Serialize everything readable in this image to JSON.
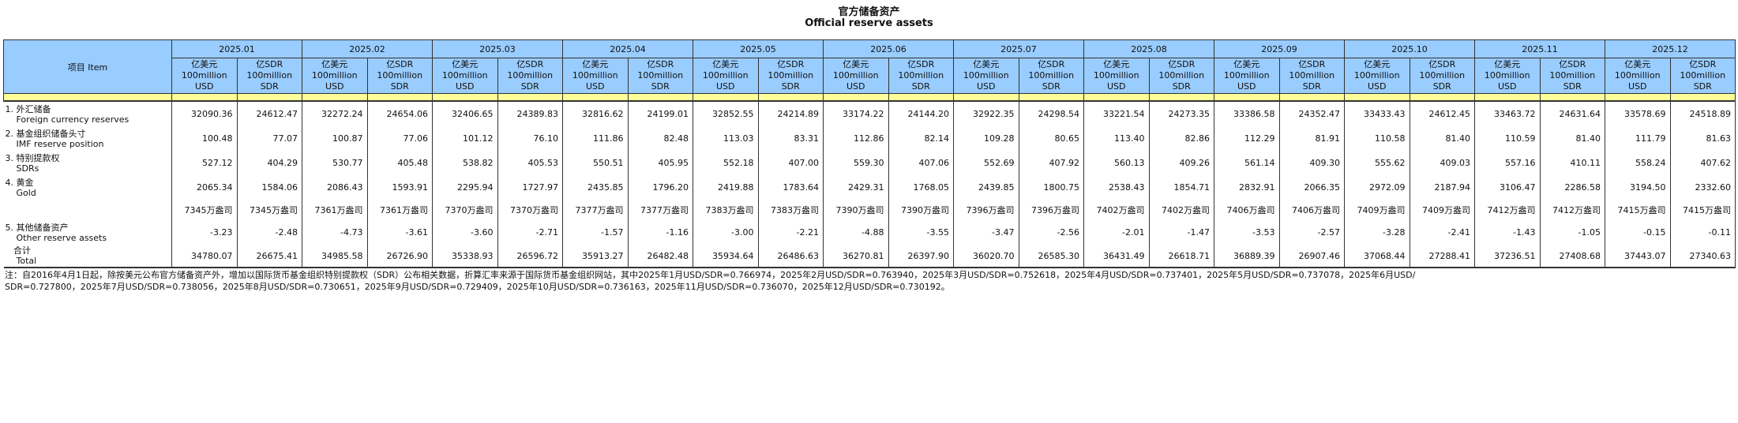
{
  "title_cn": "官方储备资产",
  "title_en": "Official reserve assets",
  "item_header": "项目  Item",
  "months": [
    "2025.01",
    "2025.02",
    "2025.03",
    "2025.04",
    "2025.05",
    "2025.06",
    "2025.07",
    "2025.08",
    "2025.09",
    "2025.10",
    "2025.11",
    "2025.12"
  ],
  "units": {
    "usd": [
      "亿美元",
      "100million",
      "USD"
    ],
    "sdr": [
      "亿SDR",
      "100million",
      "SDR"
    ]
  },
  "rows": [
    {
      "cn": "1. 外汇储备",
      "en": "Foreign currency reserves",
      "values": [
        "32090.36",
        "24612.47",
        "32272.24",
        "24654.06",
        "32406.65",
        "24389.83",
        "32816.62",
        "24199.01",
        "32852.55",
        "24214.89",
        "33174.22",
        "24144.20",
        "32922.35",
        "24298.54",
        "33221.54",
        "24273.35",
        "33386.58",
        "24352.47",
        "33433.43",
        "24612.45",
        "33463.72",
        "24631.64",
        "33578.69",
        "24518.89"
      ]
    },
    {
      "cn": "2. 基金组织储备头寸",
      "en": "IMF reserve position",
      "values": [
        "100.48",
        "77.07",
        "100.87",
        "77.06",
        "101.12",
        "76.10",
        "111.86",
        "82.48",
        "113.03",
        "83.31",
        "112.86",
        "82.14",
        "109.28",
        "80.65",
        "113.40",
        "82.86",
        "112.29",
        "81.91",
        "110.58",
        "81.40",
        "110.59",
        "81.40",
        "111.79",
        "81.63"
      ]
    },
    {
      "cn": "3. 特别提款权",
      "en": "SDRs",
      "values": [
        "527.12",
        "404.29",
        "530.77",
        "405.48",
        "538.82",
        "405.53",
        "550.51",
        "405.95",
        "552.18",
        "407.00",
        "559.30",
        "407.06",
        "552.69",
        "407.92",
        "560.13",
        "409.26",
        "561.14",
        "409.30",
        "555.62",
        "409.03",
        "557.16",
        "410.11",
        "558.24",
        "407.62"
      ]
    },
    {
      "cn": "4. 黄金",
      "en": "Gold",
      "values": [
        "2065.34",
        "1584.06",
        "2086.43",
        "1593.91",
        "2295.94",
        "1727.97",
        "2435.85",
        "1796.20",
        "2419.88",
        "1783.64",
        "2429.31",
        "1768.05",
        "2439.85",
        "1800.75",
        "2538.43",
        "1854.71",
        "2832.91",
        "2066.35",
        "2972.09",
        "2187.94",
        "3106.47",
        "2286.58",
        "3194.50",
        "2332.60"
      ]
    },
    {
      "cn": "",
      "en": "",
      "oz": true,
      "values": [
        "7345万盎司",
        "7345万盎司",
        "7361万盎司",
        "7361万盎司",
        "7370万盎司",
        "7370万盎司",
        "7377万盎司",
        "7377万盎司",
        "7383万盎司",
        "7383万盎司",
        "7390万盎司",
        "7390万盎司",
        "7396万盎司",
        "7396万盎司",
        "7402万盎司",
        "7402万盎司",
        "7406万盎司",
        "7406万盎司",
        "7409万盎司",
        "7409万盎司",
        "7412万盎司",
        "7412万盎司",
        "7415万盎司",
        "7415万盎司"
      ]
    },
    {
      "cn": "5. 其他储备资产",
      "en": "Other reserve assets",
      "values": [
        "-3.23",
        "-2.48",
        "-4.73",
        "-3.61",
        "-3.60",
        "-2.71",
        "-1.57",
        "-1.16",
        "-3.00",
        "-2.21",
        "-4.88",
        "-3.55",
        "-3.47",
        "-2.56",
        "-2.01",
        "-1.47",
        "-3.53",
        "-2.57",
        "-3.28",
        "-2.41",
        "-1.43",
        "-1.05",
        "-0.15",
        "-0.11"
      ]
    },
    {
      "cn": "   合计",
      "en": "Total",
      "total": true,
      "values": [
        "34780.07",
        "26675.41",
        "34985.58",
        "26726.90",
        "35338.93",
        "26596.72",
        "35913.27",
        "26482.48",
        "35934.64",
        "26486.63",
        "36270.81",
        "26397.90",
        "36020.70",
        "26585.30",
        "36431.49",
        "26618.71",
        "36889.39",
        "26907.46",
        "37068.44",
        "27288.41",
        "37236.51",
        "27408.68",
        "37443.07",
        "27340.63"
      ]
    }
  ],
  "notes": [
    "注：自2016年4月1日起，除按美元公布官方储备资产外，增加以国际货币基金组织特别提款权（SDR）公布相关数据，折算汇率来源于国际货币基金组织网站，其中2025年1月USD/SDR=0.766974，2025年2月USD/SDR=0.763940，2025年3月USD/SDR=0.752618，2025年4月USD/SDR=0.737401，2025年5月USD/SDR=0.737078，2025年6月USD/",
    "SDR=0.727800，2025年7月USD/SDR=0.738056，2025年8月USD/SDR=0.730651，2025年9月USD/SDR=0.729409，2025年10月USD/SDR=0.736163，2025年11月USD/SDR=0.736070，2025年12月USD/SDR=0.730192。"
  ]
}
